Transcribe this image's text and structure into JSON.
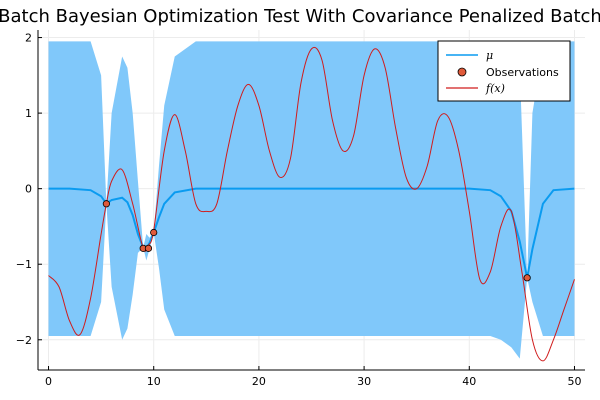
{
  "chart_data": {
    "type": "line",
    "title": "Batch Bayesian Optimization Test With Covariance Penalized Batch",
    "xlabel": "",
    "ylabel": "",
    "xlim": [
      -1,
      51
    ],
    "ylim": [
      -2.4,
      2.1
    ],
    "xticks": [
      0,
      10,
      20,
      30,
      40,
      50
    ],
    "xtick_labels": [
      "0",
      "10",
      "20",
      "30",
      "40",
      "50"
    ],
    "yticks": [
      -2,
      -1,
      0,
      1,
      2
    ],
    "ytick_labels": [
      "−2",
      "−1",
      "0",
      "1",
      "2"
    ],
    "grid": true,
    "legend_position": "top-right",
    "colors": {
      "band": "#80c8fa",
      "mu": "#0a9bf0",
      "observations": "#e05a3a",
      "f": "#d01c1c",
      "grid": "#ececec",
      "axis": "#000000"
    },
    "series": [
      {
        "name": "μ",
        "kind": "line_with_band",
        "x": [
          0,
          2,
          4,
          5,
          5.5,
          6,
          7,
          7.5,
          8,
          8.5,
          9,
          9.3,
          9.6,
          10,
          10.5,
          11,
          12,
          14,
          16,
          18,
          20,
          25,
          30,
          35,
          40,
          42,
          43,
          44,
          44.8,
          45.5,
          46,
          47,
          48,
          50
        ],
        "values": [
          0,
          0,
          -0.02,
          -0.1,
          -0.2,
          -0.15,
          -0.12,
          -0.18,
          -0.35,
          -0.6,
          -0.78,
          -0.79,
          -0.72,
          -0.58,
          -0.38,
          -0.2,
          -0.05,
          0,
          0,
          0,
          0,
          0,
          0,
          0,
          0,
          -0.02,
          -0.1,
          -0.3,
          -0.7,
          -1.18,
          -0.8,
          -0.2,
          -0.02,
          0
        ],
        "band_lower": [
          -1.95,
          -1.95,
          -1.95,
          -1.5,
          -0.2,
          -1.3,
          -2.0,
          -1.85,
          -1.4,
          -0.85,
          -0.78,
          -0.95,
          -0.8,
          -0.58,
          -1.05,
          -1.6,
          -1.95,
          -1.95,
          -1.95,
          -1.95,
          -1.95,
          -1.95,
          -1.95,
          -1.95,
          -1.95,
          -1.95,
          -2.0,
          -2.1,
          -2.25,
          -1.18,
          -1.5,
          -1.95,
          -1.95,
          -1.95
        ],
        "band_upper": [
          1.95,
          1.95,
          1.95,
          1.5,
          -0.2,
          1.0,
          1.75,
          1.6,
          1.0,
          0.1,
          -0.78,
          -0.6,
          -0.65,
          -0.58,
          0.3,
          1.1,
          1.75,
          1.95,
          1.95,
          1.95,
          1.95,
          1.95,
          1.95,
          1.95,
          1.95,
          1.95,
          1.95,
          1.9,
          1.6,
          -1.18,
          1.0,
          1.85,
          1.95,
          1.95
        ]
      },
      {
        "name": "Observations",
        "kind": "scatter",
        "x": [
          5.5,
          9,
          9.5,
          10,
          45.5
        ],
        "values": [
          -0.2,
          -0.79,
          -0.79,
          -0.58,
          -1.18
        ]
      },
      {
        "name": "f(x)",
        "kind": "line",
        "x": [
          0,
          1,
          2,
          3,
          4,
          5,
          5.5,
          6,
          7,
          8,
          9,
          9.5,
          10,
          11,
          12,
          13,
          14,
          15,
          16,
          17,
          18,
          19,
          20,
          21,
          22,
          23,
          24,
          25,
          26,
          27,
          28,
          29,
          30,
          31,
          32,
          33,
          34,
          35,
          36,
          37,
          38,
          39,
          40,
          41,
          42,
          43,
          44,
          45,
          46,
          47,
          48,
          49,
          50
        ],
        "values": [
          -1.15,
          -1.3,
          -1.75,
          -1.93,
          -1.45,
          -0.6,
          -0.2,
          0.1,
          0.25,
          -0.2,
          -0.79,
          -0.75,
          -0.55,
          0.5,
          0.98,
          0.5,
          -0.2,
          -0.3,
          -0.2,
          0.5,
          1.1,
          1.38,
          1.1,
          0.5,
          0.15,
          0.4,
          1.4,
          1.85,
          1.7,
          0.9,
          0.5,
          0.7,
          1.5,
          1.85,
          1.6,
          0.8,
          0.15,
          0,
          0.3,
          0.9,
          0.95,
          0.5,
          -0.3,
          -1.2,
          -1.1,
          -0.5,
          -0.3,
          -1.1,
          -2.0,
          -2.28,
          -2.0,
          -1.6,
          -1.2
        ]
      }
    ]
  }
}
